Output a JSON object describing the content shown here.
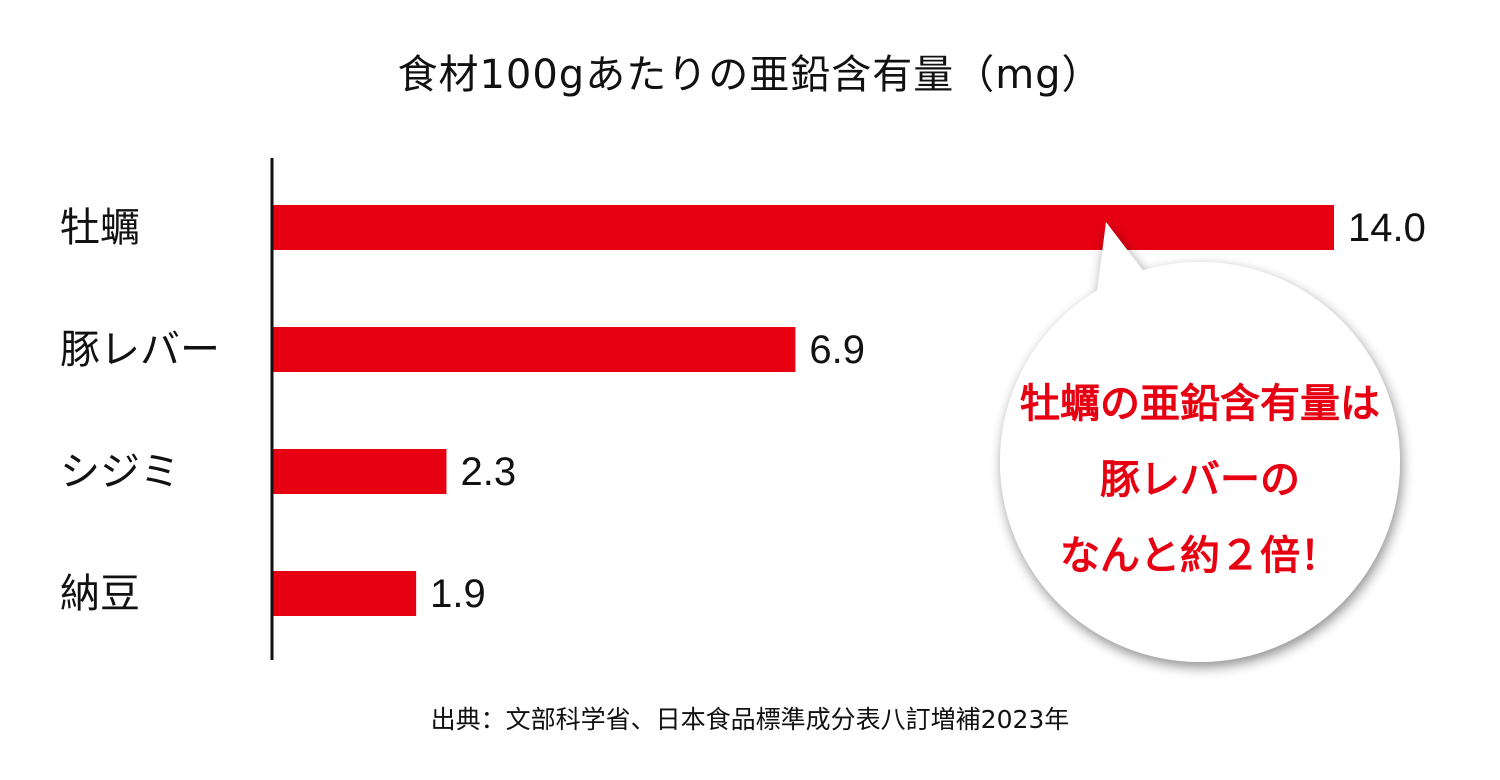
{
  "chart_data": {
    "type": "bar",
    "orientation": "horizontal",
    "title": "食材100gあたりの亜鉛含有量（mg）",
    "categories": [
      "牡蠣",
      "豚レバー",
      "シジミ",
      "納豆"
    ],
    "values": [
      14.0,
      6.9,
      2.3,
      1.9
    ],
    "value_labels": [
      "14.0",
      "6.9",
      "2.3",
      "1.9"
    ],
    "xlim": [
      0,
      14
    ],
    "grid": false,
    "legend": "none",
    "bar_color": "#e60012",
    "annotation": {
      "lines": [
        "牡蠣の亜鉛含有量は",
        "豚レバーの",
        "なんと約２倍！"
      ],
      "color": "#e60012",
      "points_to": "牡蠣"
    },
    "source": "出典：文部科学省、日本食品標準成分表八訂増補2023年"
  }
}
